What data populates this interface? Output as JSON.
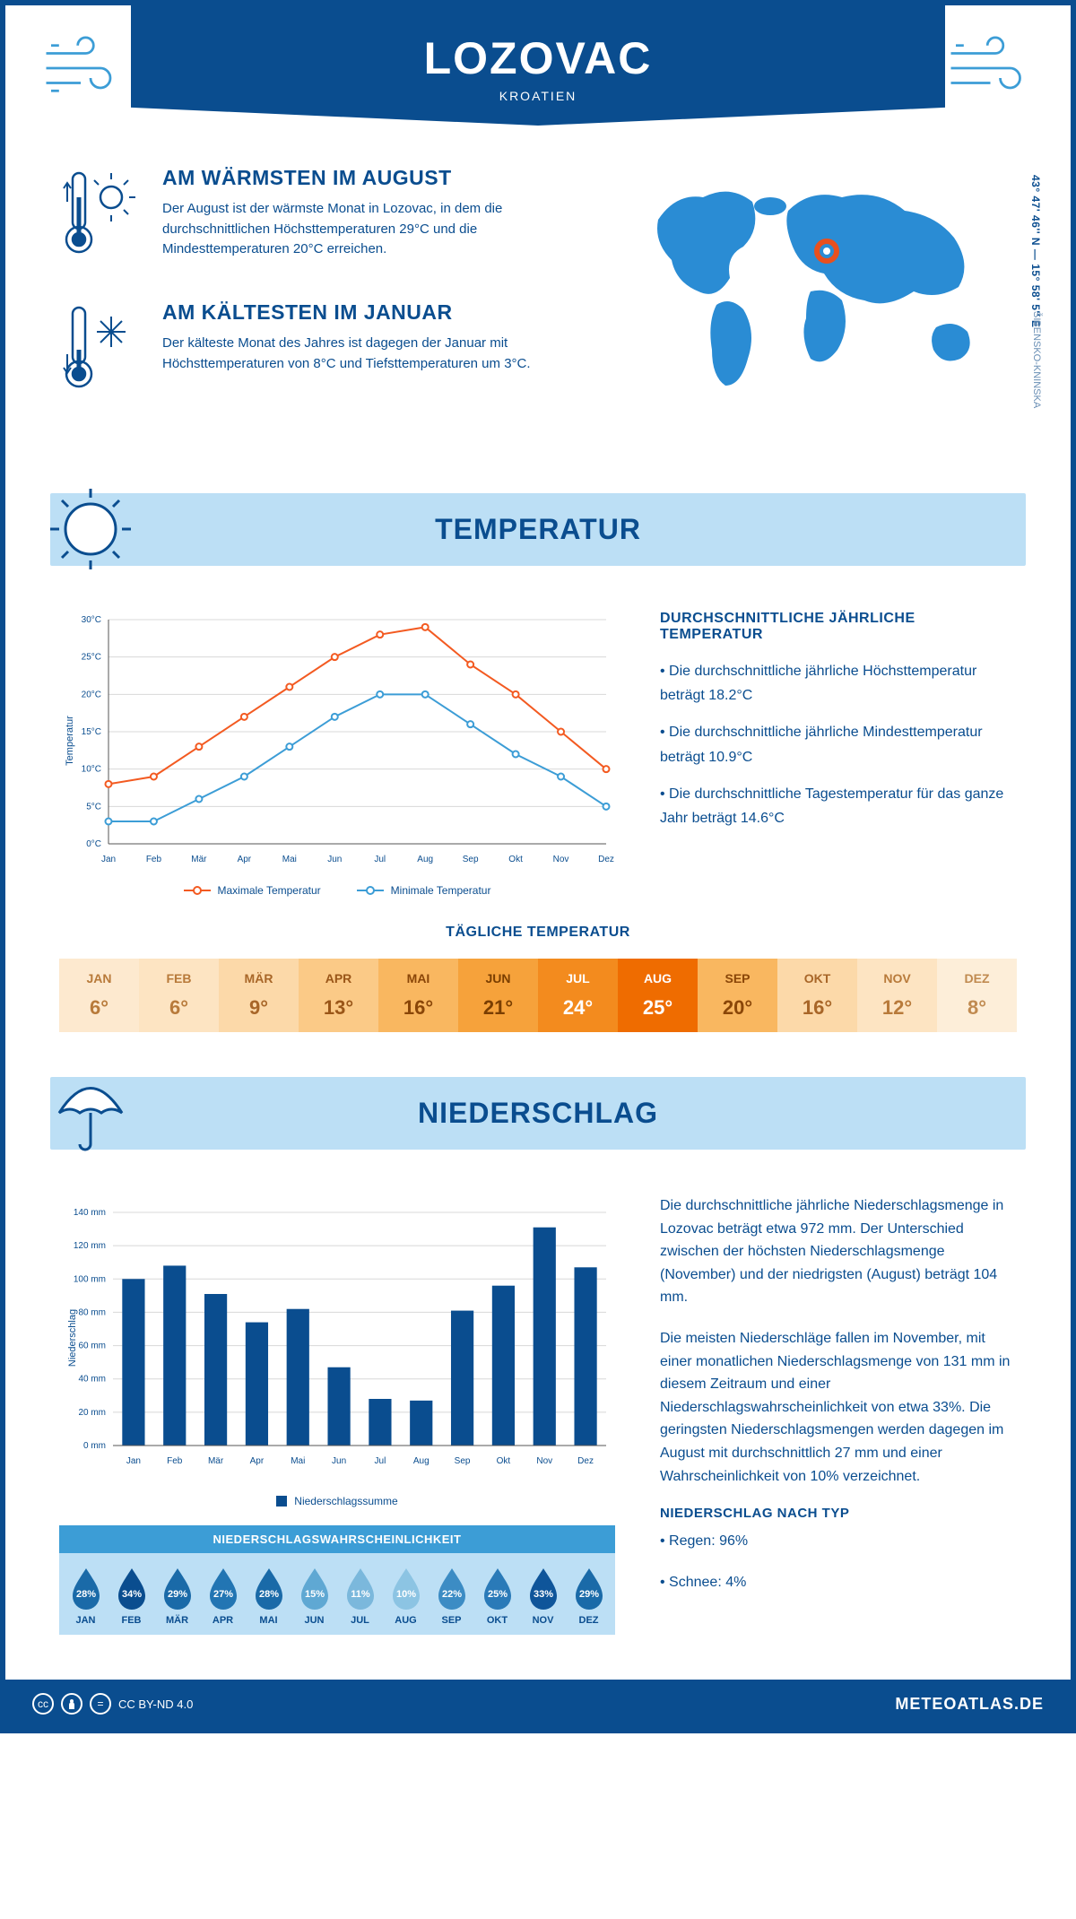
{
  "header": {
    "title": "LOZOVAC",
    "subtitle": "KROATIEN"
  },
  "coords": "43° 47' 46'' N — 15° 58' 5'' E",
  "region": "ŠIBENSKO-KNINSKA",
  "warmest": {
    "title": "AM WÄRMSTEN IM AUGUST",
    "text": "Der August ist der wärmste Monat in Lozovac, in dem die durchschnittlichen Höchsttemperaturen 29°C und die Mindesttemperaturen 20°C erreichen."
  },
  "coldest": {
    "title": "AM KÄLTESTEN IM JANUAR",
    "text": "Der kälteste Monat des Jahres ist dagegen der Januar mit Höchsttemperaturen von 8°C und Tiefsttemperaturen um 3°C."
  },
  "temperatur": {
    "banner": "TEMPERATUR",
    "info_title": "DURCHSCHNITTLICHE JÄHRLICHE TEMPERATUR",
    "bullets": [
      "• Die durchschnittliche jährliche Höchsttemperatur beträgt 18.2°C",
      "• Die durchschnittliche jährliche Mindesttemperatur beträgt 10.9°C",
      "• Die durchschnittliche Tagestemperatur für das ganze Jahr beträgt 14.6°C"
    ],
    "chart": {
      "type": "line",
      "months": [
        "Jan",
        "Feb",
        "Mär",
        "Apr",
        "Mai",
        "Jun",
        "Jul",
        "Aug",
        "Sep",
        "Okt",
        "Nov",
        "Dez"
      ],
      "max": {
        "label": "Maximale Temperatur",
        "color": "#f35a21",
        "values": [
          8,
          9,
          13,
          17,
          21,
          25,
          28,
          29,
          24,
          20,
          15,
          10
        ]
      },
      "min": {
        "label": "Minimale Temperatur",
        "color": "#3c9dd6",
        "values": [
          3,
          3,
          6,
          9,
          13,
          17,
          20,
          20,
          16,
          12,
          9,
          5
        ]
      },
      "ylabel": "Temperatur",
      "ylim": [
        0,
        30
      ],
      "ystep": 5,
      "grid_color": "#d8d8d8",
      "axis_color": "#555"
    },
    "daily": {
      "title": "TÄGLICHE TEMPERATUR",
      "months": [
        "JAN",
        "FEB",
        "MÄR",
        "APR",
        "MAI",
        "JUN",
        "JUL",
        "AUG",
        "SEP",
        "OKT",
        "NOV",
        "DEZ"
      ],
      "values": [
        "6°",
        "6°",
        "9°",
        "13°",
        "16°",
        "21°",
        "24°",
        "25°",
        "20°",
        "16°",
        "12°",
        "8°"
      ],
      "bg_colors": [
        "#fde9cf",
        "#fde4c2",
        "#fcd9a9",
        "#fbca87",
        "#f9b760",
        "#f6a23b",
        "#f38b1e",
        "#ef6c00",
        "#f9b760",
        "#fcd9a9",
        "#fde4c2",
        "#fdeed9"
      ],
      "text_colors": [
        "#b87a3a",
        "#b87a3a",
        "#a86628",
        "#9a5618",
        "#8a4608",
        "#7a3e00",
        "#ffffff",
        "#ffffff",
        "#8a4608",
        "#a86628",
        "#b87a3a",
        "#c08a50"
      ]
    }
  },
  "niederschlag": {
    "banner": "NIEDERSCHLAG",
    "chart": {
      "type": "bar",
      "months": [
        "Jan",
        "Feb",
        "Mär",
        "Apr",
        "Mai",
        "Jun",
        "Jul",
        "Aug",
        "Sep",
        "Okt",
        "Nov",
        "Dez"
      ],
      "values": [
        100,
        108,
        91,
        74,
        82,
        47,
        28,
        27,
        81,
        96,
        131,
        107
      ],
      "ylabel": "Niederschlag",
      "ylim": [
        0,
        140
      ],
      "ystep": 20,
      "bar_color": "#0a4d8f",
      "grid_color": "#d8d8d8",
      "legend": "Niederschlagssumme"
    },
    "text": [
      "Die durchschnittliche jährliche Niederschlagsmenge in Lozovac beträgt etwa 972 mm. Der Unterschied zwischen der höchsten Niederschlagsmenge (November) und der niedrigsten (August) beträgt 104 mm.",
      "Die meisten Niederschläge fallen im November, mit einer monatlichen Niederschlagsmenge von 131 mm in diesem Zeitraum und einer Niederschlagswahrscheinlichkeit von etwa 33%. Die geringsten Niederschlagsmengen werden dagegen im August mit durchschnittlich 27 mm und einer Wahrscheinlichkeit von 10% verzeichnet."
    ],
    "type_title": "NIEDERSCHLAG NACH TYP",
    "types": [
      "• Regen: 96%",
      "• Schnee: 4%"
    ],
    "prob": {
      "title": "NIEDERSCHLAGSWAHRSCHEINLICHKEIT",
      "months": [
        "JAN",
        "FEB",
        "MÄR",
        "APR",
        "MAI",
        "JUN",
        "JUL",
        "AUG",
        "SEP",
        "OKT",
        "NOV",
        "DEZ"
      ],
      "values": [
        "28%",
        "34%",
        "29%",
        "27%",
        "28%",
        "15%",
        "11%",
        "10%",
        "22%",
        "25%",
        "33%",
        "29%"
      ],
      "colors": [
        "#1a6aa8",
        "#0a4d8f",
        "#1a6aa8",
        "#2275b3",
        "#1a6aa8",
        "#5fa8d3",
        "#7bb8dc",
        "#8cc4e3",
        "#3c8cc4",
        "#2a7ab8",
        "#0f559a",
        "#1a6aa8"
      ]
    }
  },
  "footer": {
    "license": "CC BY-ND 4.0",
    "site": "METEOATLAS.DE"
  },
  "brand_blue": "#0a4d8f",
  "light_blue": "#bcdff5",
  "mid_blue": "#3c9dd6"
}
